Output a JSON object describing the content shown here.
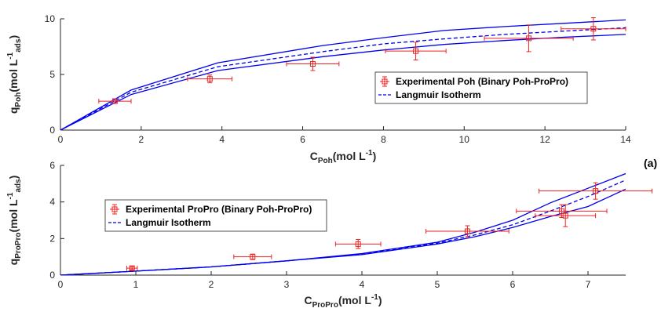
{
  "panel_tag": "(a)",
  "colors": {
    "model": "#0000ee",
    "experimental": "#ee2222",
    "axis": "#262626"
  },
  "chart_data": [
    {
      "type": "line",
      "ylabel_main": "q",
      "ylabel_sub": "Poh",
      "ylabel_unit": "(mol L",
      "ylabel_sup": "-1",
      "ylabel_unit_sub": "ads",
      "ylabel_close": ")",
      "xlabel_main": "C",
      "xlabel_sub": "Poh",
      "xlabel_unit": "(mol L",
      "xlabel_sup": "-1",
      "xlabel_close": ")",
      "xlim": [
        0,
        14
      ],
      "ylim": [
        0,
        10
      ],
      "xticks": [
        0,
        2,
        4,
        6,
        8,
        10,
        12,
        14
      ],
      "yticks": [
        0,
        5,
        10
      ],
      "legend": {
        "position": "center-right",
        "experimental": "Experimental Poh (Binary Poh-ProPro)",
        "model": "Langmuir Isotherm"
      },
      "model_series": [
        {
          "name": "Langmuir Isotherm",
          "style": "dashed",
          "x": [
            0,
            1.75,
            3.9,
            6.5,
            8,
            9.5,
            11,
            12.5,
            14
          ],
          "y": [
            0,
            3.4,
            5.7,
            7.05,
            7.75,
            8.2,
            8.6,
            8.9,
            9.2
          ]
        },
        {
          "name": "",
          "style": "solid",
          "x": [
            0,
            1.75,
            3.9,
            6.5,
            8,
            9.5,
            11,
            12.5,
            14
          ],
          "y": [
            0,
            3.6,
            6.05,
            7.6,
            8.3,
            8.95,
            9.3,
            9.6,
            9.9
          ]
        },
        {
          "name": "",
          "style": "solid",
          "x": [
            0,
            1.75,
            3.9,
            6.5,
            8,
            9.5,
            11,
            12.5,
            14
          ],
          "y": [
            0,
            3.2,
            5.35,
            6.6,
            7.2,
            7.7,
            8.05,
            8.35,
            8.6
          ]
        }
      ],
      "experimental": {
        "name": "Experimental Poh (Binary Poh-ProPro)",
        "points": [
          {
            "x": 1.35,
            "y": 2.6,
            "xerr": 0.4,
            "yerr": 0.2
          },
          {
            "x": 3.7,
            "y": 4.6,
            "xerr": 0.55,
            "yerr": 0.35
          },
          {
            "x": 6.25,
            "y": 5.95,
            "xerr": 0.65,
            "yerr": 0.6
          },
          {
            "x": 8.8,
            "y": 7.1,
            "xerr": 0.75,
            "yerr": 0.8
          },
          {
            "x": 11.6,
            "y": 8.25,
            "xerr": 1.1,
            "yerr": 1.2
          },
          {
            "x": 13.2,
            "y": 9.1,
            "xerr": 0.8,
            "yerr": 1.0
          }
        ]
      }
    },
    {
      "type": "line",
      "ylabel_main": "q",
      "ylabel_sub": "ProPro",
      "ylabel_unit": "(mol L",
      "ylabel_sup": "-1",
      "ylabel_unit_sub": "ads",
      "ylabel_close": ")",
      "xlabel_main": "C",
      "xlabel_sub": "ProPro",
      "xlabel_unit": "(mol L",
      "xlabel_sup": "-1",
      "xlabel_close": ")",
      "xlim": [
        0,
        7.5
      ],
      "ylim": [
        0,
        6
      ],
      "xticks": [
        0,
        1,
        2,
        3,
        4,
        5,
        6,
        7
      ],
      "yticks": [
        0,
        2,
        4,
        6
      ],
      "legend": {
        "position": "top-left",
        "experimental": "Experimental ProPro (Binary Poh-ProPro)",
        "model": "Langmuir Isotherm"
      },
      "model_series": [
        {
          "name": "Langmuir Isotherm",
          "style": "dashed",
          "x": [
            0,
            1,
            2,
            3,
            4,
            5,
            5.5,
            6,
            6.5,
            7,
            7.5
          ],
          "y": [
            0,
            0.22,
            0.45,
            0.78,
            1.15,
            1.75,
            2.2,
            2.75,
            3.5,
            4.3,
            5.2
          ]
        },
        {
          "name": "",
          "style": "solid",
          "x": [
            0,
            1,
            2,
            3,
            4,
            5,
            5.5,
            6,
            6.5,
            7,
            7.5
          ],
          "y": [
            0,
            0.22,
            0.45,
            0.78,
            1.18,
            1.8,
            2.35,
            3.0,
            3.95,
            4.75,
            5.55
          ]
        },
        {
          "name": "",
          "style": "solid",
          "x": [
            0,
            1,
            2,
            3,
            4,
            5,
            5.5,
            6,
            6.5,
            7,
            7.5
          ],
          "y": [
            0,
            0.22,
            0.45,
            0.78,
            1.12,
            1.7,
            2.1,
            2.6,
            3.2,
            3.75,
            4.7
          ]
        }
      ],
      "experimental": {
        "name": "Experimental ProPro (Binary Poh-ProPro)",
        "points": [
          {
            "x": 0.95,
            "y": 0.38,
            "xerr": 0.07,
            "yerr": 0.08
          },
          {
            "x": 2.55,
            "y": 1.0,
            "xerr": 0.25,
            "yerr": 0.15
          },
          {
            "x": 3.95,
            "y": 1.7,
            "xerr": 0.3,
            "yerr": 0.25
          },
          {
            "x": 5.4,
            "y": 2.4,
            "xerr": 0.55,
            "yerr": 0.3
          },
          {
            "x": 6.65,
            "y": 3.5,
            "xerr": 0.6,
            "yerr": 0.35
          },
          {
            "x": 6.7,
            "y": 3.25,
            "xerr": 0.4,
            "yerr": 0.6
          },
          {
            "x": 7.1,
            "y": 4.6,
            "xerr": 0.75,
            "yerr": 0.45
          }
        ]
      }
    }
  ]
}
